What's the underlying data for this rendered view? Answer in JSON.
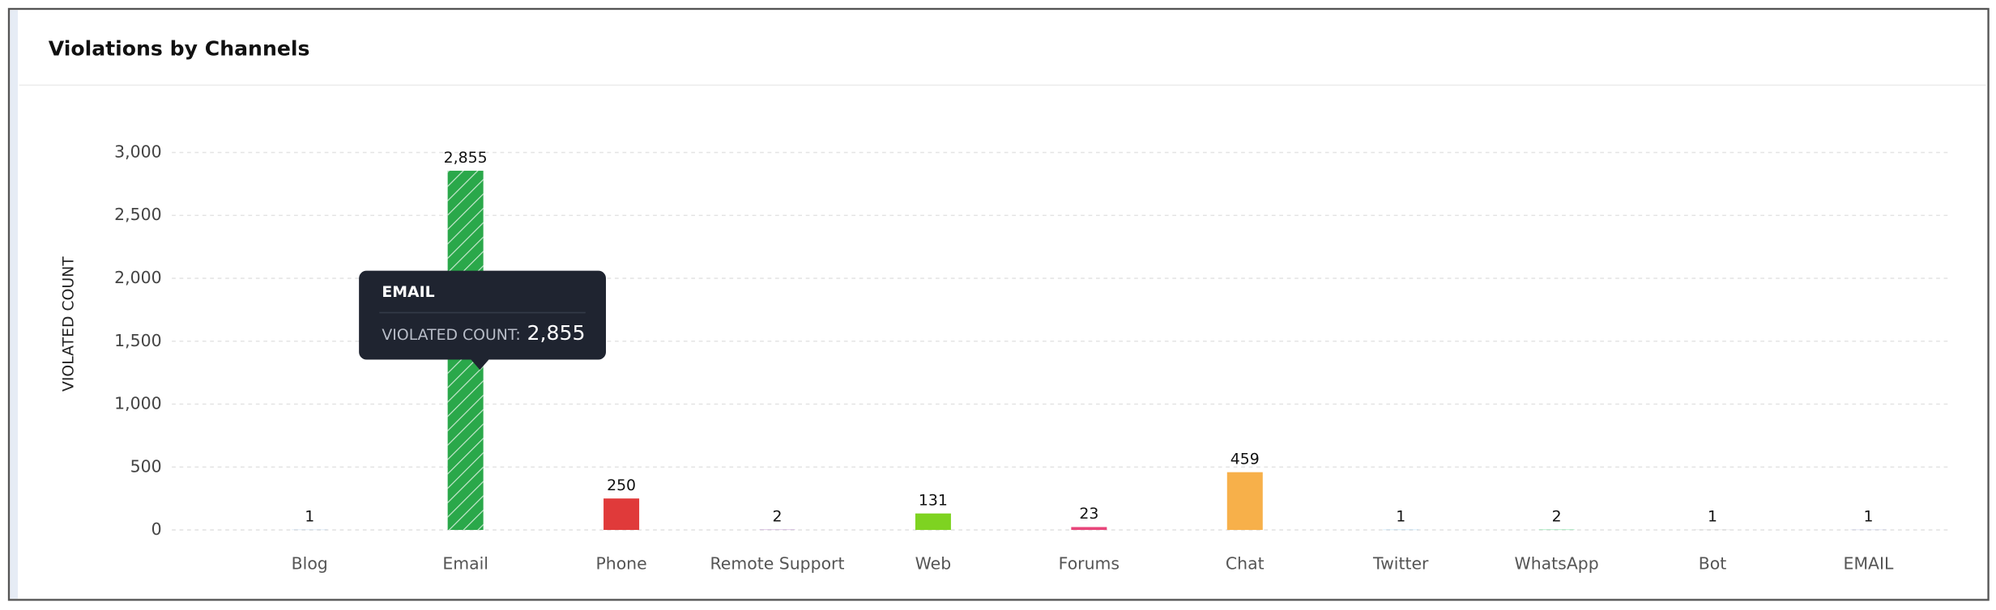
{
  "chart_data": {
    "type": "bar",
    "title": "Violations by Channels",
    "y_label": "VIOLATED COUNT",
    "categories": [
      "Blog",
      "Email",
      "Phone",
      "Remote Support",
      "Web",
      "Forums",
      "Chat",
      "Twitter",
      "WhatsApp",
      "Bot",
      "EMAIL"
    ],
    "values": [
      1,
      2855,
      250,
      2,
      131,
      23,
      459,
      1,
      2,
      1,
      1
    ],
    "value_labels": [
      "1",
      "2,855",
      "250",
      "2",
      "131",
      "23",
      "459",
      "1",
      "2",
      "1",
      "1"
    ],
    "colors": [
      "#4a90d9",
      "#2aa84a",
      "#e03a3a",
      "#9b59b6",
      "#7ed321",
      "#e8457a",
      "#f7b04a",
      "#1da1f2",
      "#25d366",
      "#8e8e8e",
      "#5b6abf"
    ],
    "hatched": [
      false,
      true,
      false,
      false,
      false,
      false,
      false,
      false,
      false,
      false,
      false
    ],
    "ylim": [
      0,
      3000
    ],
    "yticks": [
      0,
      500,
      {
        "value": 1000,
        "label": "1,000"
      },
      {
        "value": 1500,
        "label": "1,500"
      },
      {
        "value": 2000,
        "label": "2,000"
      },
      {
        "value": 2500,
        "label": "2,500"
      },
      {
        "value": 3000,
        "label": "3,000"
      }
    ],
    "grid": true,
    "tooltip": {
      "title": "EMAIL",
      "label": "VIOLATED COUNT:",
      "value_label": "2,855"
    }
  }
}
